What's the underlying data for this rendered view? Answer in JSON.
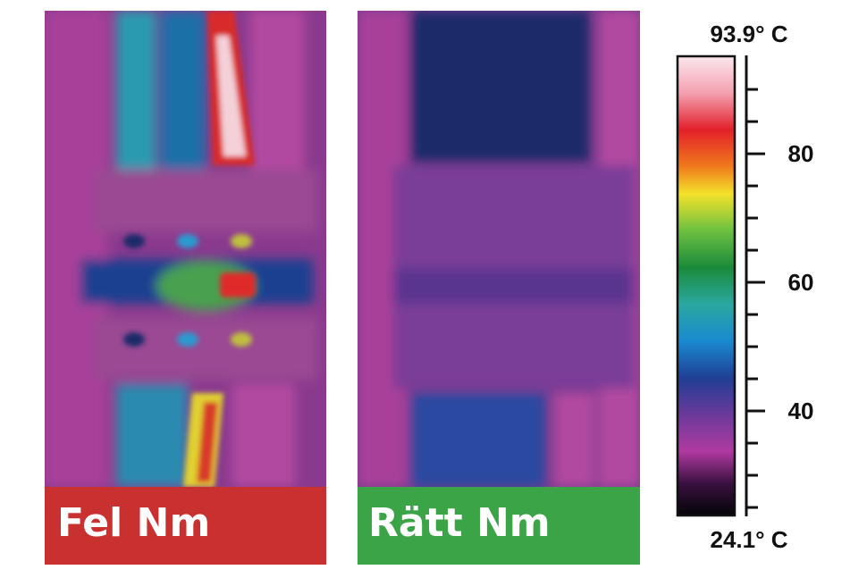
{
  "panels": [
    {
      "label": "Fel Nm"
    },
    {
      "label": "Rätt Nm"
    }
  ],
  "scale": {
    "max_label": "93.9° C",
    "min_label": "24.1° C",
    "range": [
      24.1,
      93.9
    ],
    "ticks": [
      40,
      60,
      80
    ],
    "minor_ticks": [
      25,
      30,
      35,
      45,
      50,
      55,
      65,
      70,
      75,
      85,
      90
    ]
  }
}
